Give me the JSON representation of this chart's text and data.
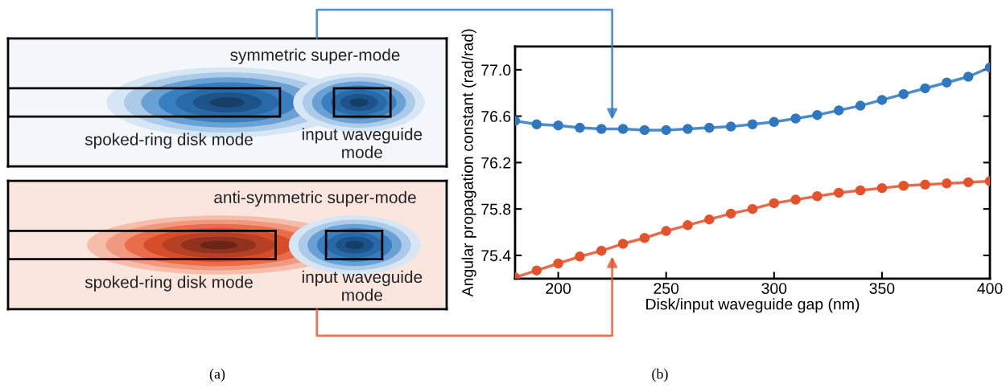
{
  "chart_data": [
    {
      "type": "other",
      "annotations": [
        "symmetric super-mode",
        "spoked-ring disk mode",
        "input waveguide\nmode",
        "anti-symmetric super-mode",
        "spoked-ring disk mode",
        "input waveguide\nmode",
        "(a)"
      ]
    },
    {
      "type": "line",
      "xlabel": "Disk/input waveguide gap (nm)",
      "ylabel": "Angular propagation constant (rad/rad)",
      "annotations": [
        "(b)"
      ],
      "x": [
        180,
        190,
        200,
        210,
        220,
        230,
        240,
        250,
        260,
        270,
        280,
        290,
        300,
        310,
        320,
        330,
        340,
        350,
        360,
        370,
        380,
        390,
        400
      ],
      "series": [
        {
          "color": "#2f78c0",
          "values": [
            76.56,
            76.53,
            76.52,
            76.5,
            76.49,
            76.49,
            76.48,
            76.48,
            76.49,
            76.5,
            76.51,
            76.53,
            76.55,
            76.58,
            76.61,
            76.65,
            76.69,
            76.74,
            76.79,
            76.84,
            76.89,
            76.94,
            77.02
          ]
        },
        {
          "color": "#e4522b",
          "values": [
            75.21,
            75.27,
            75.33,
            75.39,
            75.44,
            75.5,
            75.55,
            75.61,
            75.66,
            75.71,
            75.76,
            75.8,
            75.85,
            75.88,
            75.91,
            75.94,
            75.96,
            75.98,
            76.0,
            76.01,
            76.02,
            76.03,
            76.04
          ]
        }
      ],
      "xlim": [
        180,
        400
      ],
      "ylim": [
        75.2,
        77.2
      ],
      "xticks": [
        200,
        250,
        300,
        350,
        400
      ],
      "yticks": [
        75.4,
        75.8,
        76.2,
        76.6,
        {
          "value": 77,
          "label": "77.0"
        }
      ],
      "marker": "circle",
      "line_style": "solid",
      "grid": false,
      "legend": false
    }
  ]
}
